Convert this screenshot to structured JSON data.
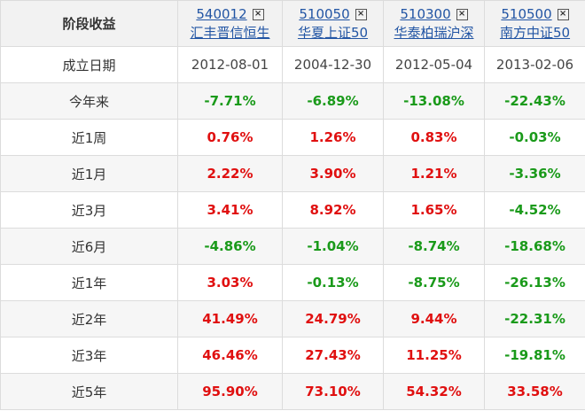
{
  "table": {
    "header": {
      "title": "阶段收益",
      "funds": [
        {
          "code": "540012",
          "name": "汇丰晋信恒生"
        },
        {
          "code": "510050",
          "name": "华夏上证50"
        },
        {
          "code": "510300",
          "name": "华泰柏瑞沪深"
        },
        {
          "code": "510500",
          "name": "南方中证50"
        }
      ]
    },
    "rows": [
      [
        "成立日期",
        "2012-08-01",
        "2004-12-30",
        "2012-05-04",
        "2013-02-06"
      ],
      [
        "今年来",
        "-7.71%",
        "-6.89%",
        "-13.08%",
        "-22.43%"
      ],
      [
        "近1周",
        "0.76%",
        "1.26%",
        "0.83%",
        "-0.03%"
      ],
      [
        "近1月",
        "2.22%",
        "3.90%",
        "1.21%",
        "-3.36%"
      ],
      [
        "近3月",
        "3.41%",
        "8.92%",
        "1.65%",
        "-4.52%"
      ],
      [
        "近6月",
        "-4.86%",
        "-1.04%",
        "-8.74%",
        "-18.68%"
      ],
      [
        "近1年",
        "3.03%",
        "-0.13%",
        "-8.75%",
        "-26.13%"
      ],
      [
        "近2年",
        "41.49%",
        "24.79%",
        "9.44%",
        "-22.31%"
      ],
      [
        "近3年",
        "46.46%",
        "27.43%",
        "11.25%",
        "-19.81%"
      ],
      [
        "近5年",
        "95.90%",
        "73.10%",
        "54.32%",
        "33.58%"
      ]
    ]
  }
}
